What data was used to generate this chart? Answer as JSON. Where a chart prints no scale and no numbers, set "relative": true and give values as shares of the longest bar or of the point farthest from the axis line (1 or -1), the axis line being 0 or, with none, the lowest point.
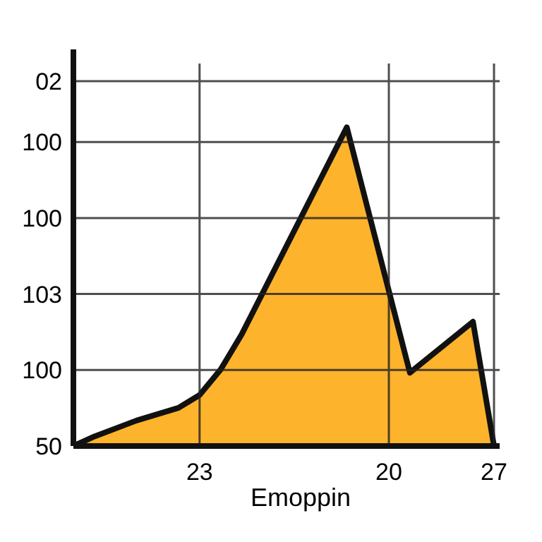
{
  "chart_data": {
    "type": "area",
    "xlabel": "Emoppin",
    "relative": true,
    "categories": [
      null,
      null,
      null,
      null,
      null,
      null,
      "23",
      null,
      null,
      null,
      null,
      null,
      null,
      null,
      null,
      "20",
      null,
      null,
      null,
      null,
      "27"
    ],
    "values": [
      0,
      0.03,
      null,
      0.08,
      null,
      0.12,
      0.16,
      0.24,
      0.35,
      null,
      null,
      null,
      null,
      1,
      null,
      null,
      0.23,
      null,
      null,
      0.39,
      0
    ],
    "color": "#fdb32b",
    "annotations": [
      "50",
      "100",
      "103",
      "100",
      "100",
      "02"
    ],
    "grid": true
  }
}
